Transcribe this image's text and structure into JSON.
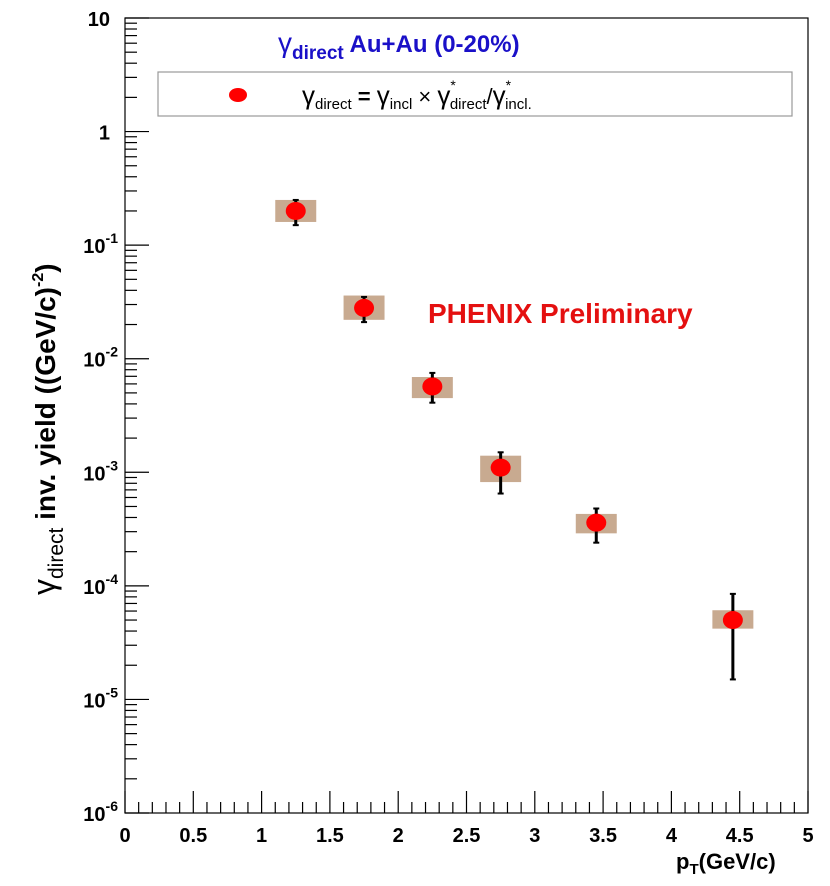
{
  "chart_data": {
    "type": "scatter",
    "title": {
      "symbol": "γ",
      "subscript": "direct",
      "rest": " Au+Au (0-20%)"
    },
    "annotation": "PHENIX Preliminary",
    "xlabel": {
      "main": "p",
      "sub": "T",
      "rest": "(GeV/c)"
    },
    "ylabel": {
      "symbol": "γ",
      "sub": "direct",
      "rest": " inv. yield ((GeV/c)",
      "sup": "-2",
      "close": ")"
    },
    "xlim": [
      0,
      5
    ],
    "ylim": [
      1e-06,
      10
    ],
    "yscale": "log",
    "x_ticks": [
      "0",
      "0.5",
      "1",
      "1.5",
      "2",
      "2.5",
      "3",
      "3.5",
      "4",
      "4.5",
      "5"
    ],
    "y_ticks": [
      {
        "base": "10",
        "exp": "-6"
      },
      {
        "base": "10",
        "exp": "-5"
      },
      {
        "base": "10",
        "exp": "-4"
      },
      {
        "base": "10",
        "exp": "-3"
      },
      {
        "base": "10",
        "exp": "-2"
      },
      {
        "base": "10",
        "exp": "-1"
      },
      {
        "base": "1",
        "exp": ""
      },
      {
        "base": "10",
        "exp": ""
      }
    ],
    "legend": {
      "placement": "top",
      "entry": {
        "g1": "γ",
        "s1": "direct",
        "eq": " = ",
        "g2": "γ",
        "s2": "incl",
        "times": " × ",
        "g3": "γ",
        "sup3": "*",
        "s3": "direct",
        "slash": "/",
        "g4": "γ",
        "sup4": "*",
        "s4": "incl."
      }
    },
    "series": [
      {
        "x": [
          1.25,
          1.75,
          2.25,
          2.75,
          3.45,
          4.45
        ],
        "y": [
          0.2,
          0.028,
          0.0057,
          0.0011,
          0.00036,
          5e-05
        ],
        "y_stat_low": [
          0.15,
          0.021,
          0.0041,
          0.00065,
          0.00024,
          1.5e-05
        ],
        "y_stat_high": [
          0.25,
          0.035,
          0.0075,
          0.0015,
          0.00048,
          8.5e-05
        ],
        "y_sys_low": [
          0.16,
          0.022,
          0.0045,
          0.00082,
          0.00029,
          4.2e-05
        ],
        "y_sys_high": [
          0.25,
          0.036,
          0.0069,
          0.0014,
          0.00043,
          6.1e-05
        ],
        "x_sys_half_width": 0.15
      }
    ],
    "colors": {
      "marker": "#ff0000",
      "sys_box": "#c8aa90",
      "title": "#1a10c8",
      "annotation": "#e41010",
      "axis": "#000000"
    }
  }
}
